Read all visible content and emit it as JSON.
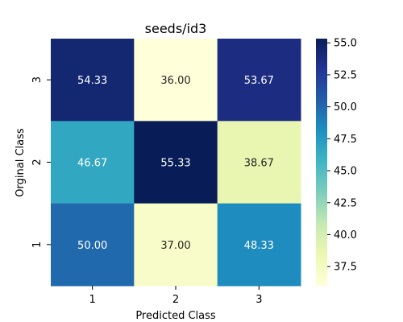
{
  "chart_data": {
    "type": "heatmap",
    "title": "seeds/id3",
    "xlabel": "Predicted Class",
    "ylabel": "Orginal Class",
    "x_categories": [
      "1",
      "2",
      "3"
    ],
    "y_categories": [
      "3",
      "2",
      "1"
    ],
    "values": [
      [
        54.33,
        36.0,
        53.67
      ],
      [
        46.67,
        55.33,
        38.67
      ],
      [
        50.0,
        37.0,
        48.33
      ]
    ],
    "cell_labels": [
      [
        "54.33",
        "36.00",
        "53.67"
      ],
      [
        "46.67",
        "55.33",
        "38.67"
      ],
      [
        "50.00",
        "37.00",
        "48.33"
      ]
    ],
    "colormap": "YlGnBu",
    "color_range": [
      36.0,
      55.33
    ],
    "colorbar_ticks": [
      "37.5",
      "40.0",
      "42.5",
      "45.0",
      "47.5",
      "50.0",
      "52.5",
      "55.0"
    ],
    "colorbar_tick_values": [
      37.5,
      40.0,
      42.5,
      45.0,
      47.5,
      50.0,
      52.5,
      55.0
    ]
  }
}
